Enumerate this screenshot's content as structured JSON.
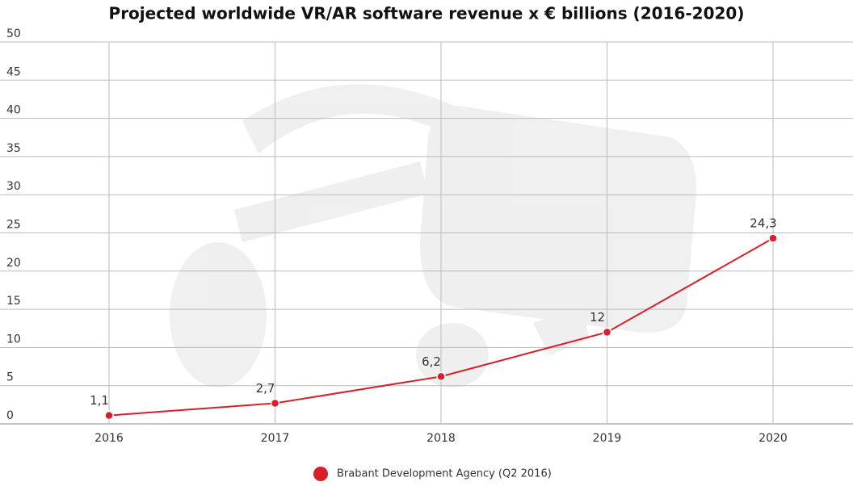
{
  "chart_data": {
    "type": "line",
    "title": "Projected worldwide VR/AR software revenue x € billions (2016-2020)",
    "categories": [
      "2016",
      "2017",
      "2018",
      "2019",
      "2020"
    ],
    "series": [
      {
        "name": "Brabant Development Agency (Q2 2016)",
        "color": "#d9202a",
        "values": [
          1.1,
          2.7,
          6.2,
          12,
          24.3
        ],
        "value_labels": [
          "1,1",
          "2,7",
          "6,2",
          "12",
          "24,3"
        ]
      }
    ],
    "ylim": [
      0,
      50
    ],
    "yticks": [
      0,
      5,
      10,
      15,
      20,
      25,
      30,
      35,
      40,
      45,
      50
    ],
    "grid": true
  }
}
